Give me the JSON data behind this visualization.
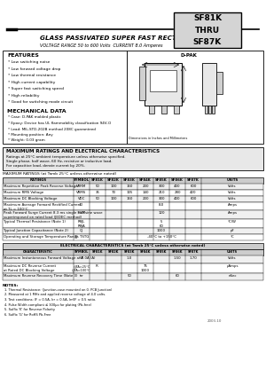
{
  "title_box_text": "SF81K\nTHRU\nSF87K",
  "header_line": "GLASS PASSIVATED SUPER FAST RECTIFIER",
  "subheader_line": "VOLTAGE RANGE 50 to 600 Volts  CURRENT 8.0 Amperes",
  "features_title": "FEATURES",
  "features": [
    "Low switching noise",
    "Low forward voltage drop",
    "Low thermal resistance",
    "High current capability",
    "Super fast switching speed",
    "High reliability",
    "Good for switching mode circuit"
  ],
  "mech_title": "MECHANICAL DATA",
  "mech": [
    "Case: D-PAK molded plastic",
    "Epoxy: Device has UL flammability classification 94V-O",
    "Lead: MIL-STD-202B method 208C guaranteed",
    "Mounting position: Any",
    "Weight: 0.03 gram"
  ],
  "package_label": "D-PAK",
  "dim_note": "Dimensions in Inches and Millimeters",
  "max_box_title": "MAXIMUM RATINGS AND ELECTRICAL CHARACTERISTICS",
  "max_box_sub1": "Ratings at 25°C ambient temperature unless otherwise specified.",
  "max_box_sub2": "Single phase, half wave, 60 Hz, resistive or inductive load.",
  "max_box_sub3": "For capacitive load, derate current by 20%.",
  "max_table_title": "MAXIMUM RATINGS (at Tamb 25°C unless otherwise noted)",
  "col_headers": [
    "RATINGS",
    "SYMBOL",
    "SF81K",
    "SF82K",
    "SF83K",
    "SF84K",
    "SF85K",
    "SF86K",
    "SF87K",
    "UNITS"
  ],
  "max_rows": [
    [
      "Maximum Repetitive Peak Reverse Voltage",
      "VRRM",
      "50",
      "100",
      "150",
      "200",
      "300",
      "400",
      "600",
      "Volts"
    ],
    [
      "Maximum RMS Voltage",
      "VRMS",
      "35",
      "70",
      "105",
      "140",
      "210",
      "280",
      "420",
      "Volts"
    ],
    [
      "Maximum DC Blocking Voltage",
      "VDC",
      "50",
      "100",
      "150",
      "200",
      "300",
      "400",
      "600",
      "Volts"
    ],
    [
      "Maximum Average Forward Rectified Current\nat TL = 100°C",
      "IO",
      "",
      "",
      "",
      "",
      "8.0",
      "",
      "",
      "Amps"
    ],
    [
      "Peak Forward Surge Current 8.3 ms single half sine wave\nsuperimposed on rated load (JEDEC method)",
      "IFSM",
      "",
      "",
      "",
      "",
      "120",
      "",
      "",
      "Amps"
    ],
    [
      "Typical Thermal Resistance (Note 1)",
      "RθJL\nRθJA",
      "",
      "",
      "",
      "",
      "5\n60",
      "",
      "",
      "°C/W"
    ],
    [
      "Typical Junction Capacitance (Note 2)",
      "CJ",
      "",
      "",
      "",
      "",
      "1000",
      "",
      "",
      "pF"
    ],
    [
      "Operating and Storage Temperature Range",
      "TJ, TSTG",
      "",
      "",
      "",
      "",
      "-40°C to +150°C",
      "",
      "",
      "°C"
    ]
  ],
  "elec_table_title": "ELECTRICAL CHARACTERISTICS (at Tamb 25°C unless otherwise noted)",
  "elec_col_headers": [
    "CHARACTERISTIC",
    "SYMBOL",
    "SF81K",
    "SF82K",
    "SF83K",
    "SF84K",
    "SF85K",
    "SF86K",
    "SF87K",
    "UNITS"
  ],
  "elec_rows": [
    [
      "Maximum Instantaneous Forward Voltage at 8.0A (A)",
      "VF",
      "",
      "",
      "1.0",
      "",
      "",
      "1.50",
      "1.70",
      "Volts"
    ],
    [
      "Maximum DC Reverse Current\nat Rated DC Blocking Voltage",
      "@TA=25°C\n@TA=100°C",
      "IR",
      "",
      "",
      "75\n1000",
      "",
      "",
      "",
      "μAmps"
    ],
    [
      "Maximum Reverse Recovery Time (Note 3)",
      "trr",
      "",
      "",
      "50",
      "",
      "",
      "60",
      "",
      "nSec"
    ]
  ],
  "notes_title": "NOTES:",
  "notes": [
    "1. Thermal Resistance: (Junction-case mounted on 0. PCB Junction)",
    "2. Measured at 1 MHz and applied reverse voltage of 4.0 volts.",
    "3. Test conditions: IF = 0.5A, Irr = 0.5A, Irr/IF = 0.5 ratio.",
    "4. Pulse Width compliant ≤ 300μs for plating (Pb-free)",
    "5. Suffix 'K' for Reverse Polarity",
    "6. Suffix 'G' for RoHS Pb-Free"
  ],
  "watermark_color": "#6688bb",
  "bg_color": "#ffffff",
  "title_box_bg": "#d4d4d4"
}
